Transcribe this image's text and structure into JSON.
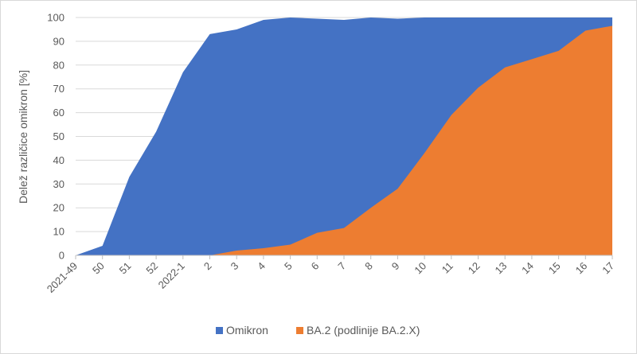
{
  "chart_data": {
    "type": "area",
    "title": "",
    "xlabel": "",
    "ylabel": "Delež različice omikron [%]",
    "ylim": [
      0,
      100
    ],
    "yticks": [
      0,
      10,
      20,
      30,
      40,
      50,
      60,
      70,
      80,
      90,
      100
    ],
    "grid": true,
    "legend_position": "bottom",
    "categories": [
      "2021-49",
      "50",
      "51",
      "52",
      "2022-1",
      "2",
      "3",
      "4",
      "5",
      "6",
      "7",
      "8",
      "9",
      "10",
      "11",
      "12",
      "13",
      "14",
      "15",
      "16",
      "17"
    ],
    "series": [
      {
        "name": "Omikron",
        "color": "#4472c4",
        "values": [
          0,
          4,
          33,
          52,
          77,
          93,
          95,
          99,
          100,
          99.5,
          99,
          100,
          99.5,
          100,
          100,
          100,
          100,
          100,
          100,
          100,
          100
        ]
      },
      {
        "name": "BA.2 (podlinije BA.2.X)",
        "color": "#ed7d31",
        "values": [
          0,
          0,
          0,
          0,
          0,
          0,
          2,
          3,
          4.5,
          9.5,
          11.5,
          20,
          28,
          43,
          59,
          70.5,
          79,
          82.5,
          86,
          94.5,
          96.5
        ]
      }
    ]
  }
}
